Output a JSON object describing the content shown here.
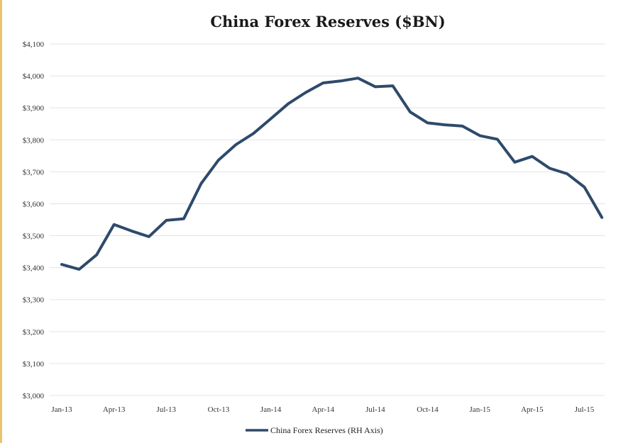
{
  "chart_data": {
    "type": "line",
    "title": "China Forex Reserves ($BN)",
    "xlabel": "",
    "ylabel": "",
    "ylim": [
      3000,
      4100
    ],
    "yticks": [
      3000,
      3100,
      3200,
      3300,
      3400,
      3500,
      3600,
      3700,
      3800,
      3900,
      4000,
      4100
    ],
    "ytick_labels": [
      "$3,000",
      "$3,100",
      "$3,200",
      "$3,300",
      "$3,400",
      "$3,500",
      "$3,600",
      "$3,700",
      "$3,800",
      "$3,900",
      "$4,000",
      "$4,100"
    ],
    "xtick_labels": [
      "Jan-13",
      "Apr-13",
      "Jul-13",
      "Oct-13",
      "Jan-14",
      "Apr-14",
      "Jul-14",
      "Oct-14",
      "Jan-15",
      "Apr-15",
      "Jul-15"
    ],
    "x": [
      "Jan-13",
      "Feb-13",
      "Mar-13",
      "Apr-13",
      "May-13",
      "Jun-13",
      "Jul-13",
      "Aug-13",
      "Sep-13",
      "Oct-13",
      "Nov-13",
      "Dec-13",
      "Jan-14",
      "Feb-14",
      "Mar-14",
      "Apr-14",
      "May-14",
      "Jun-14",
      "Jul-14",
      "Aug-14",
      "Sep-14",
      "Oct-14",
      "Nov-14",
      "Dec-14",
      "Jan-15",
      "Feb-15",
      "Mar-15",
      "Apr-15",
      "May-15",
      "Jun-15",
      "Jul-15",
      "Aug-15"
    ],
    "series": [
      {
        "name": "China Forex Reserves (RH Axis)",
        "color": "#2e4a6b",
        "values": [
          3410,
          3395,
          3440,
          3535,
          3515,
          3497,
          3548,
          3553,
          3663,
          3737,
          3785,
          3820,
          3866,
          3913,
          3948,
          3978,
          3984,
          3993,
          3966,
          3969,
          3887,
          3853,
          3847,
          3843,
          3813,
          3802,
          3730,
          3748,
          3711,
          3694,
          3652,
          3557
        ]
      }
    ],
    "grid": true,
    "legend_position": "bottom-center"
  }
}
